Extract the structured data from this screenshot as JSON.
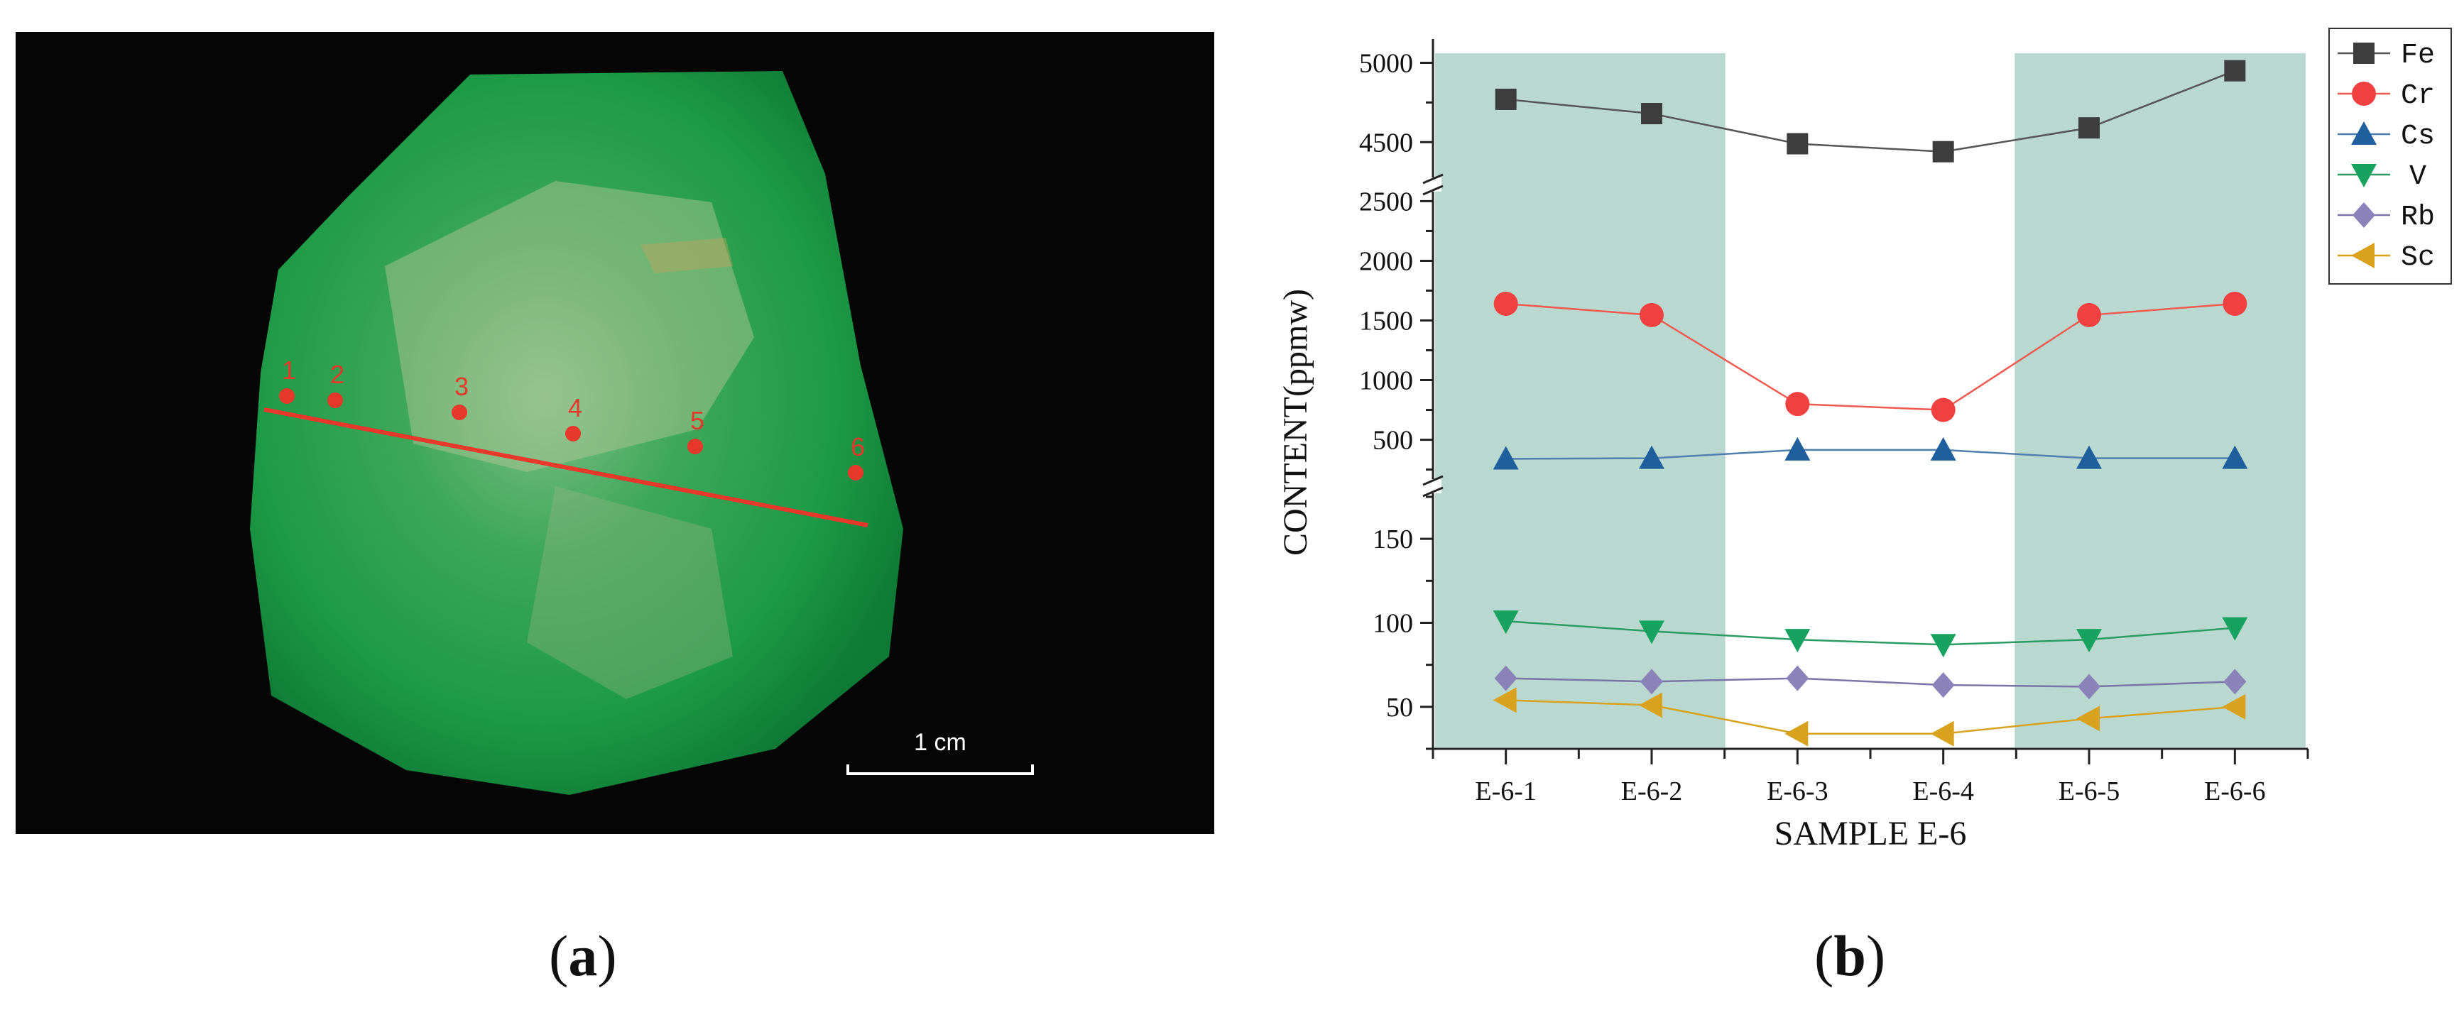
{
  "panel_a": {
    "label": "a",
    "scale_bar_text": "1 cm",
    "points": [
      "1",
      "2",
      "3",
      "4",
      "5",
      "6"
    ],
    "colors": {
      "background": "#050505",
      "crystal": "#1fa048",
      "line": "#e8372b"
    }
  },
  "panel_b": {
    "label": "b"
  },
  "chart_data": {
    "type": "line",
    "xlabel": "SAMPLE E-6",
    "ylabel": "CONTENT(ppmw)",
    "categories": [
      "E-6-1",
      "E-6-2",
      "E-6-3",
      "E-6-4",
      "E-6-5",
      "E-6-6"
    ],
    "broken_y_axis": true,
    "segments": [
      {
        "range": [
          4300,
          5150
        ],
        "ticks": [
          4500,
          5000
        ]
      },
      {
        "range": [
          200,
          2550
        ],
        "ticks": [
          500,
          1000,
          1500,
          2000,
          2500
        ]
      },
      {
        "range": [
          25,
          175
        ],
        "ticks": [
          50,
          100,
          150
        ]
      }
    ],
    "shaded_categories": [
      "E-6-1",
      "E-6-2",
      "E-6-5",
      "E-6-6"
    ],
    "legend_position": "top-right",
    "series": [
      {
        "name": "Fe",
        "marker": "square",
        "color": "#3d3d3d",
        "line_color": "#555555",
        "values": [
          4770,
          4680,
          4490,
          4440,
          4590,
          4950
        ]
      },
      {
        "name": "Cr",
        "marker": "circle",
        "color": "#f04040",
        "line_color": "#ef5a50",
        "values": [
          1640,
          1545,
          800,
          750,
          1545,
          1640
        ]
      },
      {
        "name": "Cs",
        "marker": "triangle-up",
        "color": "#1f5f9e",
        "line_color": "#4f7fae",
        "values": [
          340,
          345,
          415,
          415,
          345,
          345
        ]
      },
      {
        "name": "V",
        "marker": "triangle-down",
        "color": "#17a35f",
        "line_color": "#2a9c62",
        "values": [
          101,
          95,
          90,
          87,
          90,
          97
        ]
      },
      {
        "name": "Rb",
        "marker": "diamond",
        "color": "#8a82b8",
        "line_color": "#7a74a8",
        "values": [
          67,
          65,
          67,
          63,
          62,
          65
        ]
      },
      {
        "name": "Sc",
        "marker": "triangle-left",
        "color": "#d9a21e",
        "line_color": "#d9a21e",
        "values": [
          54,
          51,
          34,
          34,
          43,
          50
        ]
      }
    ]
  }
}
